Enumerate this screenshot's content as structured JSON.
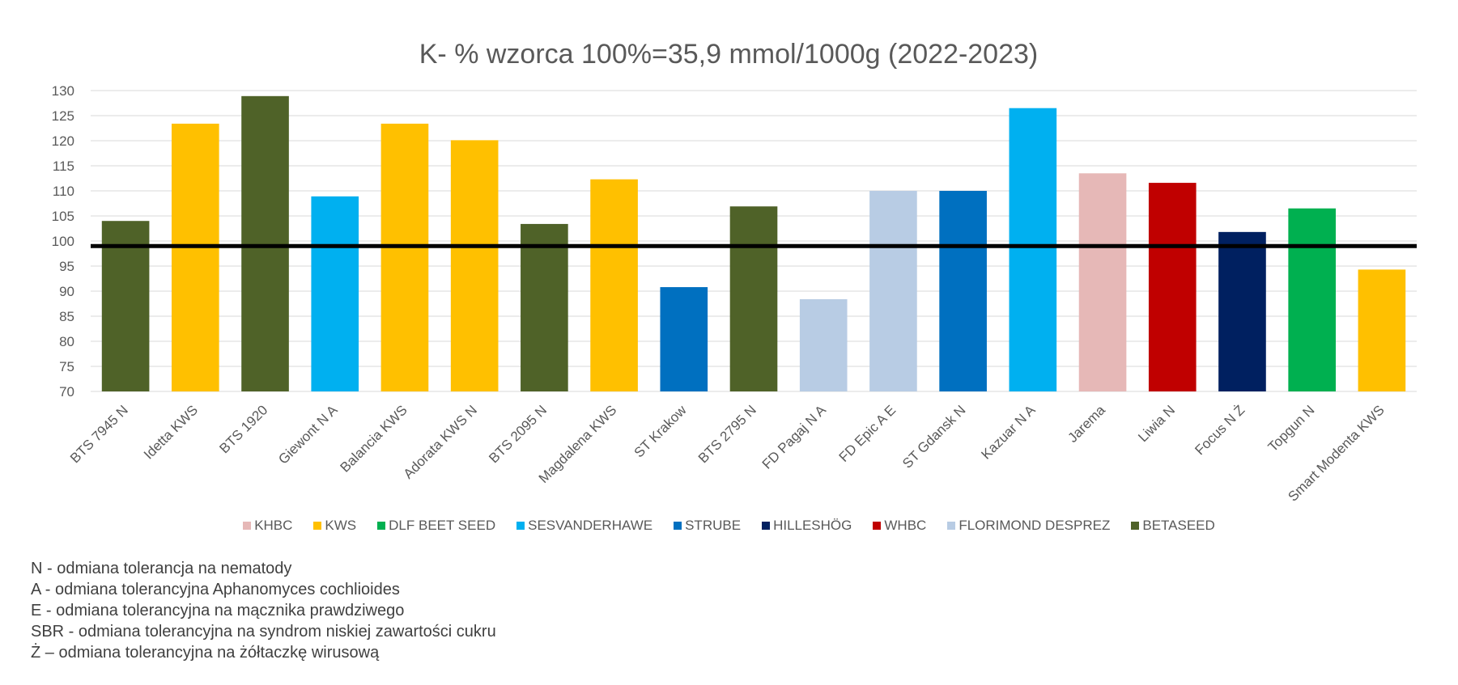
{
  "chart_data": {
    "type": "bar",
    "title": "K- % wzorca 100%=35,9 mmol/1000g (2022-2023)",
    "xlabel": "",
    "ylabel": "",
    "ylim": [
      70,
      130
    ],
    "yticks": [
      70,
      75,
      80,
      85,
      90,
      95,
      100,
      105,
      110,
      115,
      120,
      125,
      130
    ],
    "grid": true,
    "reference_line": 99,
    "categories": [
      "BTS 7945 N",
      "Idetta KWS",
      "BTS 1920",
      "Giewont N A",
      "Balancia KWS",
      "Adorata KWS N",
      "BTS 2095 N",
      "Magdalena KWS",
      "ST Krakow",
      "BTS 2795 N",
      "FD Pagaj N A",
      "FD Epic A E",
      "ST Gdansk N",
      "Kazuar N A",
      "Jarema",
      "Liwia N",
      "Focus N Ż",
      "Topgun N",
      "Smart Modenta KWS"
    ],
    "values": [
      104,
      123.4,
      128.9,
      108.9,
      123.4,
      120.1,
      103.4,
      112.3,
      90.8,
      106.9,
      88.4,
      110,
      110,
      126.5,
      113.5,
      111.6,
      101.8,
      106.5,
      94.3
    ],
    "breeders": [
      "BETASEED",
      "KWS",
      "BETASEED",
      "SESVANDERHAWE",
      "KWS",
      "KWS",
      "BETASEED",
      "KWS",
      "STRUBE",
      "BETASEED",
      "FLORIMOND DESPREZ",
      "FLORIMOND DESPREZ",
      "STRUBE",
      "SESVANDERHAWE",
      "KHBC",
      "WHBC",
      "HILLESHÖG",
      "DLF BEET SEED",
      "KWS"
    ],
    "legend": [
      {
        "name": "KHBC",
        "color": "#E6B8B7"
      },
      {
        "name": "KWS",
        "color": "#FFC000"
      },
      {
        "name": "DLF BEET SEED",
        "color": "#00B050"
      },
      {
        "name": "SESVANDERHAWE",
        "color": "#00B0F0"
      },
      {
        "name": "STRUBE",
        "color": "#0070C0"
      },
      {
        "name": "HILLESHÖG",
        "color": "#002060"
      },
      {
        "name": "WHBC",
        "color": "#C00000"
      },
      {
        "name": "FLORIMOND DESPREZ",
        "color": "#B8CCE4"
      },
      {
        "name": "BETASEED",
        "color": "#4F6228"
      }
    ],
    "legend_position": "bottom"
  },
  "notes": [
    "N - odmiana tolerancja na nematody",
    "A - odmiana tolerancyjna Aphanomyces cochlioides",
    "E - odmiana tolerancyjna na mącznika prawdziwego",
    "SBR - odmiana tolerancyjna na syndrom niskiej zawartości cukru",
    "Ż – odmiana tolerancyjna na żółtaczkę wirusową"
  ]
}
